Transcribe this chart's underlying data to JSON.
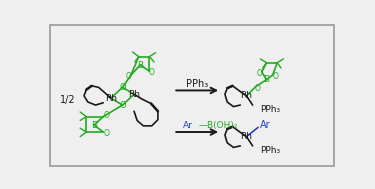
{
  "bg_color": "#efefef",
  "border_color": "#999999",
  "black": "#1a1a1a",
  "green": "#22aa22",
  "blue": "#2244cc",
  "fig_width": 3.75,
  "fig_height": 1.89,
  "label_12": "1/2",
  "label_pph3": "PPh₃",
  "label_ar": "Ar",
  "label_boh2": "—B(OH)₂",
  "label_rh": "Rh",
  "label_b": "B",
  "label_o": "O"
}
